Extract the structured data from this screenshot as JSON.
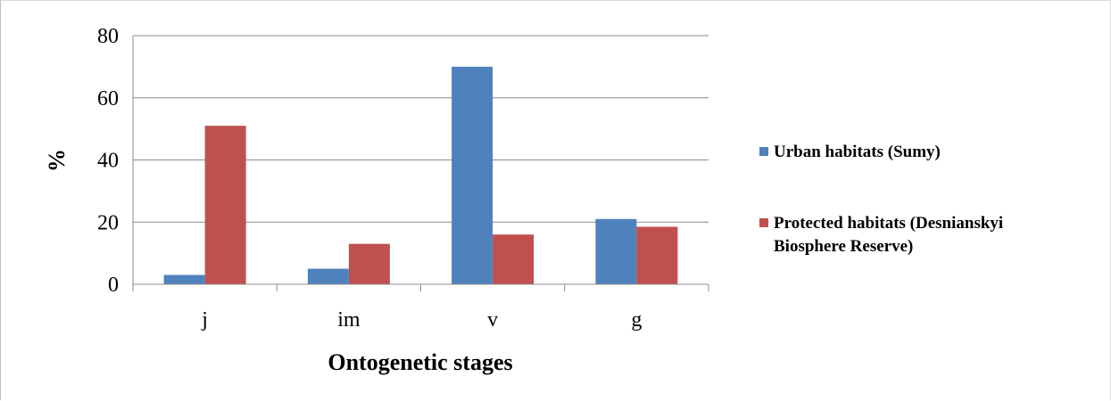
{
  "chart_data": {
    "type": "bar",
    "categories": [
      "j",
      "im",
      "v",
      "g"
    ],
    "series": [
      {
        "name": "Urban habitats (Sumy)",
        "color": "#4f81bd",
        "values": [
          3,
          5,
          70,
          21
        ]
      },
      {
        "name": "Protected habitats (Desnianskyi Biosphere Reserve)",
        "color": "#c0504d",
        "values": [
          51,
          13,
          16,
          18.5
        ]
      }
    ],
    "legend_lines": [
      [
        "Urban habitats (Sumy)"
      ],
      [
        "Protected habitats (Desnianskyi",
        "Biosphere Reserve)"
      ]
    ],
    "title": "",
    "xlabel": "Ontogenetic stages",
    "ylabel": "%",
    "ylim": [
      0,
      80
    ],
    "yticks": [
      0,
      20,
      40,
      60,
      80
    ],
    "grid": true,
    "legend_position": "right"
  }
}
